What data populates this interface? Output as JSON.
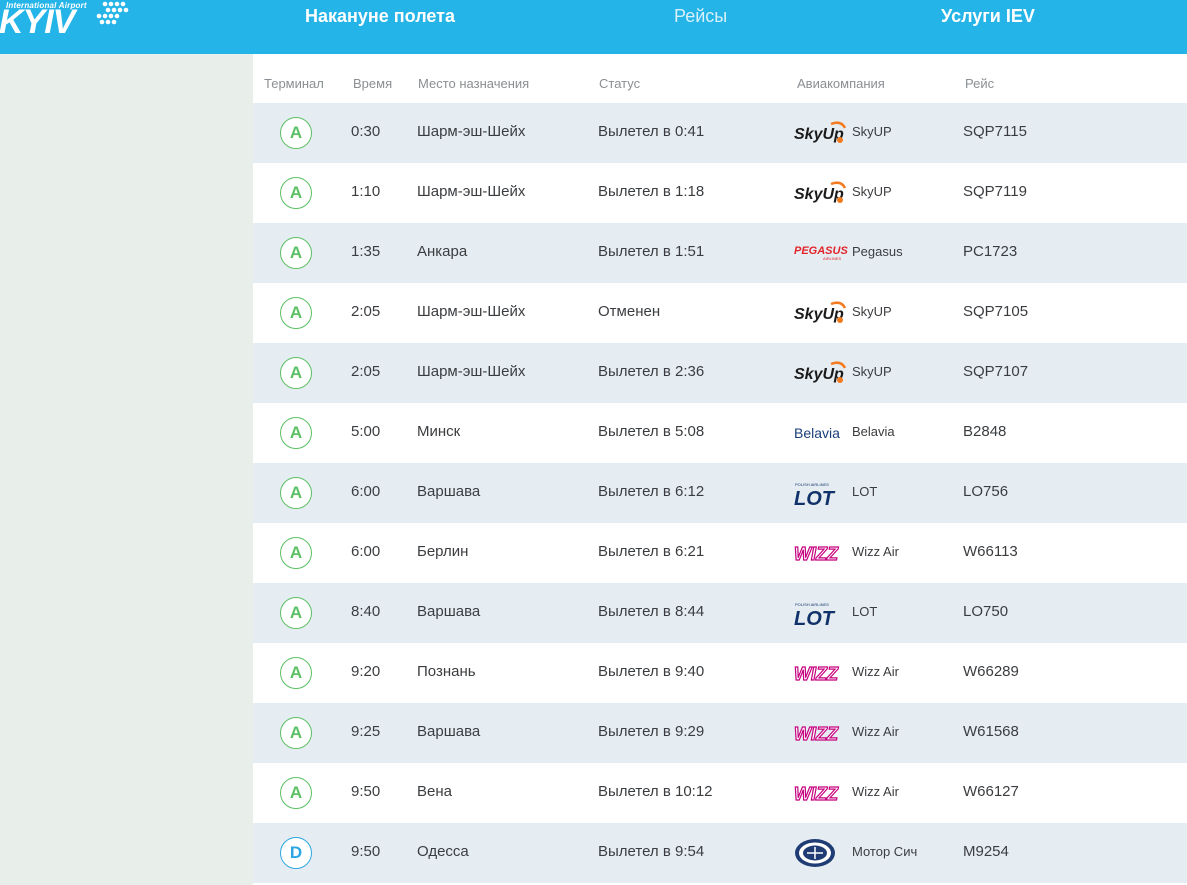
{
  "header": {
    "logo_subtitle": "International Airport",
    "logo_title": "KYIV",
    "nav": [
      {
        "label": "Накануне полета"
      },
      {
        "label": "Рейсы"
      },
      {
        "label": "Услуги IEV"
      }
    ]
  },
  "table": {
    "columns": [
      "Терминал",
      "Время",
      "Место назначения",
      "Статус",
      "Авиакомпания",
      "Рейс"
    ],
    "rows": [
      {
        "terminal": "A",
        "time": "0:30",
        "destination": "Шарм-эш-Шейх",
        "status": "Вылетел в 0:41",
        "airline": "SkyUP",
        "logo": "skyup-logo",
        "flight": "SQP7115"
      },
      {
        "terminal": "A",
        "time": "1:10",
        "destination": "Шарм-эш-Шейх",
        "status": "Вылетел в 1:18",
        "airline": "SkyUP",
        "logo": "skyup-logo",
        "flight": "SQP7119"
      },
      {
        "terminal": "A",
        "time": "1:35",
        "destination": "Анкара",
        "status": "Вылетел в 1:51",
        "airline": "Pegasus",
        "logo": "pegasus-logo",
        "flight": "PC1723"
      },
      {
        "terminal": "A",
        "time": "2:05",
        "destination": "Шарм-эш-Шейх",
        "status": "Отменен",
        "airline": "SkyUP",
        "logo": "skyup-logo",
        "flight": "SQP7105"
      },
      {
        "terminal": "A",
        "time": "2:05",
        "destination": "Шарм-эш-Шейх",
        "status": "Вылетел в 2:36",
        "airline": "SkyUP",
        "logo": "skyup-logo",
        "flight": "SQP7107"
      },
      {
        "terminal": "A",
        "time": "5:00",
        "destination": "Минск",
        "status": "Вылетел в 5:08",
        "airline": "Belavia",
        "logo": "belavia-logo",
        "flight": "B2848"
      },
      {
        "terminal": "A",
        "time": "6:00",
        "destination": "Варшава",
        "status": "Вылетел в 6:12",
        "airline": "LOT",
        "logo": "lot-logo",
        "flight": "LO756"
      },
      {
        "terminal": "A",
        "time": "6:00",
        "destination": "Берлин",
        "status": "Вылетел в 6:21",
        "airline": "Wizz Air",
        "logo": "wizz-logo",
        "flight": "W66113"
      },
      {
        "terminal": "A",
        "time": "8:40",
        "destination": "Варшава",
        "status": "Вылетел в 8:44",
        "airline": "LOT",
        "logo": "lot-logo",
        "flight": "LO750"
      },
      {
        "terminal": "A",
        "time": "9:20",
        "destination": "Познань",
        "status": "Вылетел в 9:40",
        "airline": "Wizz Air",
        "logo": "wizz-logo",
        "flight": "W66289"
      },
      {
        "terminal": "A",
        "time": "9:25",
        "destination": "Варшава",
        "status": "Вылетел в 9:29",
        "airline": "Wizz Air",
        "logo": "wizz-logo",
        "flight": "W61568"
      },
      {
        "terminal": "A",
        "time": "9:50",
        "destination": "Вена",
        "status": "Вылетел в 10:12",
        "airline": "Wizz Air",
        "logo": "wizz-logo",
        "flight": "W66127"
      },
      {
        "terminal": "D",
        "time": "9:50",
        "destination": "Одесса",
        "status": "Вылетел в 9:54",
        "airline": "Мотор Сич",
        "logo": "motorsich-logo",
        "flight": "M9254"
      }
    ]
  },
  "logo_text": {
    "skyup": "SkyUp",
    "pegasus": "PEGASUS",
    "pegasus_sub": "AIRLINES",
    "belavia": "Belavia",
    "lot_sub": "POLISH AIRLINES",
    "lot": "LOT",
    "wizz": "WIZZ"
  },
  "colors": {
    "header": "#25b4e8",
    "terminal_a": "#5cc064",
    "terminal_d": "#2ca6e4",
    "row_alt": "#e6edf2",
    "side_bg": "#e8eeea"
  }
}
